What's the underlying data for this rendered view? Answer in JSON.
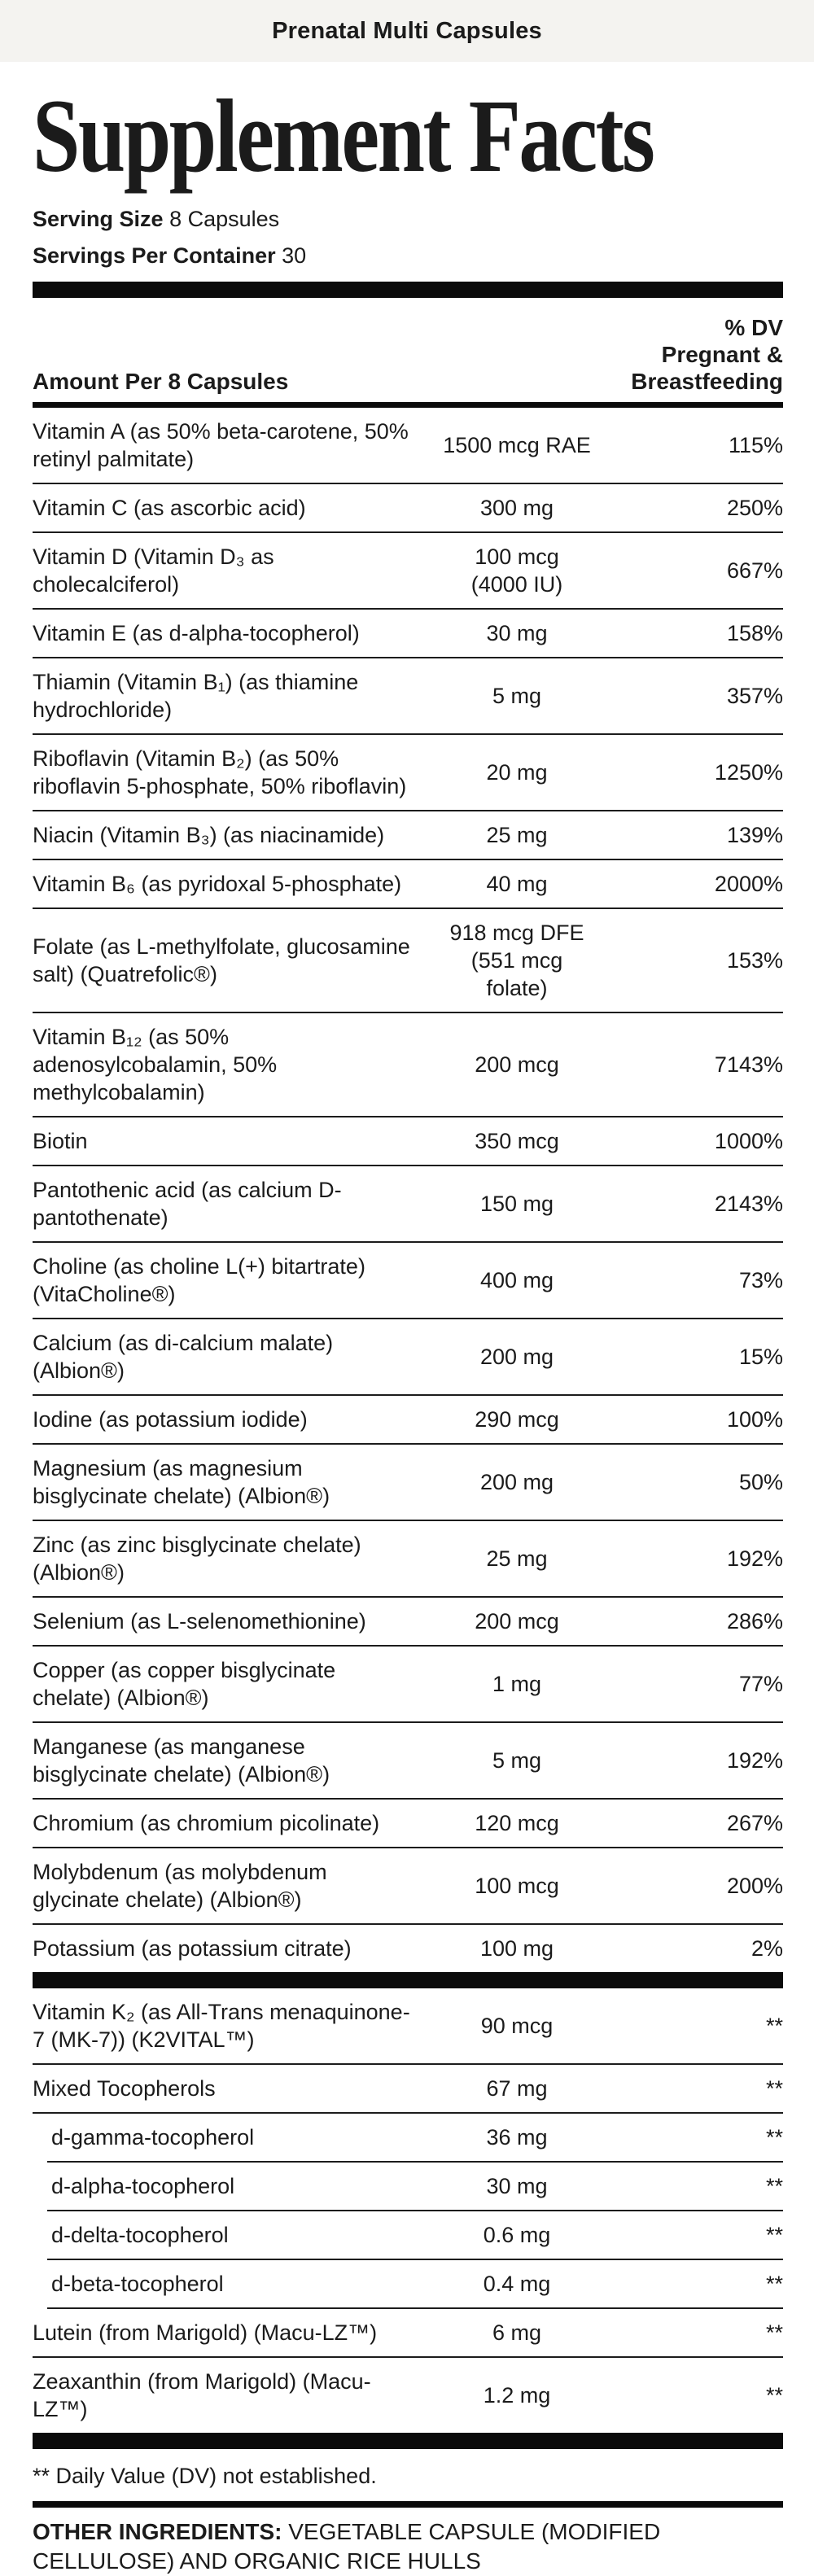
{
  "window": {
    "title": "Prenatal Multi Capsules"
  },
  "colors": {
    "page_bg": "#ffffff",
    "topbar_bg": "#f4f3f0",
    "text": "#1b1b1b",
    "divider_bar": "#0b0b0b",
    "row_separator": "#1c1c1c"
  },
  "label": {
    "title": "Supplement Facts",
    "serving_size_label": "Serving Size",
    "serving_size_value": "8 Capsules",
    "servings_per_container_label": "Servings Per Container",
    "servings_per_container_value": "30",
    "amount_header": "Amount Per 8 Capsules",
    "dv_header_lines": [
      "% DV",
      "Pregnant &",
      "Breastfeeding"
    ],
    "rows": [
      {
        "name": "Vitamin A (as 50% beta-carotene, 50% retinyl palmitate)",
        "amount": "1500 mcg RAE",
        "dv": "115%"
      },
      {
        "name": "Vitamin C (as ascorbic acid)",
        "amount": "300 mg",
        "dv": "250%"
      },
      {
        "name": "Vitamin D (Vitamin D₃ as cholecalciferol)",
        "amount": "100 mcg\n(4000 IU)",
        "dv": "667%"
      },
      {
        "name": "Vitamin E (as d-alpha-tocopherol)",
        "amount": "30 mg",
        "dv": "158%"
      },
      {
        "name": "Thiamin (Vitamin B₁) (as thiamine hydrochloride)",
        "amount": "5 mg",
        "dv": "357%"
      },
      {
        "name": "Riboflavin (Vitamin B₂) (as 50% riboflavin 5-phosphate, 50% riboflavin)",
        "amount": "20 mg",
        "dv": "1250%"
      },
      {
        "name": "Niacin (Vitamin B₃) (as niacinamide)",
        "amount": "25 mg",
        "dv": "139%"
      },
      {
        "name": "Vitamin B₆ (as pyridoxal 5-phosphate)",
        "amount": "40 mg",
        "dv": "2000%"
      },
      {
        "name": "Folate (as L-methylfolate, glucosamine salt) (Quatrefolic®)",
        "amount": "918 mcg DFE\n(551 mcg\nfolate)",
        "dv": "153%"
      },
      {
        "name": "Vitamin B₁₂ (as 50% adenosylcobalamin, 50% methylcobalamin)",
        "amount": "200 mcg",
        "dv": "7143%"
      },
      {
        "name": "Biotin",
        "amount": "350 mcg",
        "dv": "1000%"
      },
      {
        "name": "Pantothenic acid (as calcium D-pantothenate)",
        "amount": "150 mg",
        "dv": "2143%"
      },
      {
        "name": "Choline (as choline L(+) bitartrate) (VitaCholine®)",
        "amount": "400 mg",
        "dv": "73%"
      },
      {
        "name": "Calcium (as di-calcium malate) (Albion®)",
        "amount": "200 mg",
        "dv": "15%"
      },
      {
        "name": "Iodine (as potassium iodide)",
        "amount": "290 mcg",
        "dv": "100%"
      },
      {
        "name": "Magnesium (as magnesium bisglycinate chelate) (Albion®)",
        "amount": "200 mg",
        "dv": "50%"
      },
      {
        "name": "Zinc (as zinc bisglycinate chelate) (Albion®)",
        "amount": "25 mg",
        "dv": "192%"
      },
      {
        "name": "Selenium (as L-selenomethionine)",
        "amount": "200 mcg",
        "dv": "286%"
      },
      {
        "name": "Copper (as copper bisglycinate chelate) (Albion®)",
        "amount": "1 mg",
        "dv": "77%"
      },
      {
        "name": "Manganese (as manganese bisglycinate chelate) (Albion®)",
        "amount": "5 mg",
        "dv": "192%"
      },
      {
        "name": "Chromium (as chromium picolinate)",
        "amount": "120 mcg",
        "dv": "267%"
      },
      {
        "name": "Molybdenum (as molybdenum glycinate chelate) (Albion®)",
        "amount": "100 mcg",
        "dv": "200%"
      },
      {
        "name": "Potassium (as potassium citrate)",
        "amount": "100 mg",
        "dv": "2%"
      },
      {
        "type": "divider"
      },
      {
        "name": "Vitamin K₂ (as All-Trans menaquinone-7 (MK-7)) (K2VITAL™)",
        "amount": "90 mcg",
        "dv": "**"
      },
      {
        "name": "Mixed Tocopherols",
        "amount": "67 mg",
        "dv": "**"
      },
      {
        "name": "d-gamma-tocopherol",
        "amount": "36 mg",
        "dv": "**",
        "indent": true
      },
      {
        "name": "d-alpha-tocopherol",
        "amount": "30 mg",
        "dv": "**",
        "indent": true
      },
      {
        "name": "d-delta-tocopherol",
        "amount": "0.6 mg",
        "dv": "**",
        "indent": true
      },
      {
        "name": "d-beta-tocopherol",
        "amount": "0.4 mg",
        "dv": "**",
        "indent": true
      },
      {
        "name": "Lutein (from Marigold) (Macu-LZ™)",
        "amount": "6 mg",
        "dv": "**"
      },
      {
        "name": "Zeaxanthin (from Marigold) (Macu-LZ™)",
        "amount": "1.2 mg",
        "dv": "**"
      },
      {
        "type": "divider"
      }
    ],
    "footnote": "** Daily Value (DV) not established.",
    "other_ingredients_label": "OTHER INGREDIENTS:",
    "other_ingredients_value": "VEGETABLE CAPSULE (MODIFIED CELLULOSE) AND ORGANIC RICE HULLS"
  }
}
